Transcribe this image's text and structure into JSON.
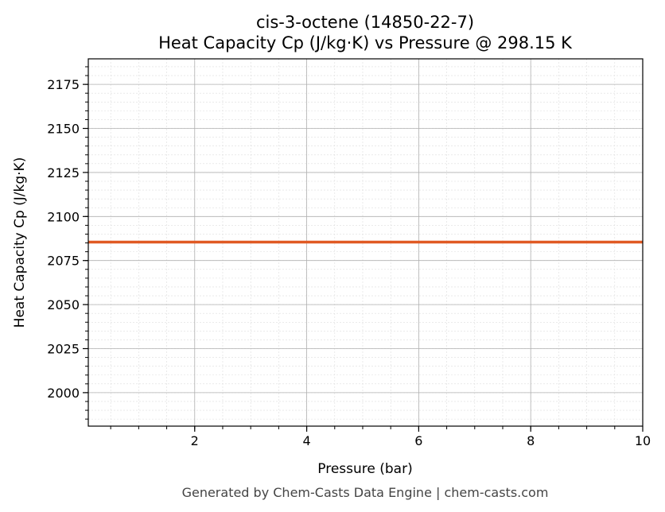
{
  "chart_data": {
    "type": "line",
    "title": "cis-3-octene (14850-22-7)",
    "subtitle": "Heat Capacity Cp (J/kg·K) vs Pressure @ 298.15 K",
    "xlabel": "Pressure (bar)",
    "ylabel": "Heat Capacity Cp (J/kg·K)",
    "xlim": [
      0.1,
      10
    ],
    "ylim": [
      1981,
      2189.5
    ],
    "xticks": [
      2,
      4,
      6,
      8,
      10
    ],
    "yticks": [
      2000,
      2025,
      2050,
      2075,
      2100,
      2125,
      2150,
      2175
    ],
    "x_minor_step": 0.5,
    "y_minor_step": 5,
    "grid": true,
    "series": [
      {
        "x": [
          0.1,
          10
        ],
        "y": [
          2085.5,
          2085.5
        ],
        "color": "#e05a24"
      }
    ],
    "footer": "Generated by Chem-Casts Data Engine | chem-casts.com"
  }
}
